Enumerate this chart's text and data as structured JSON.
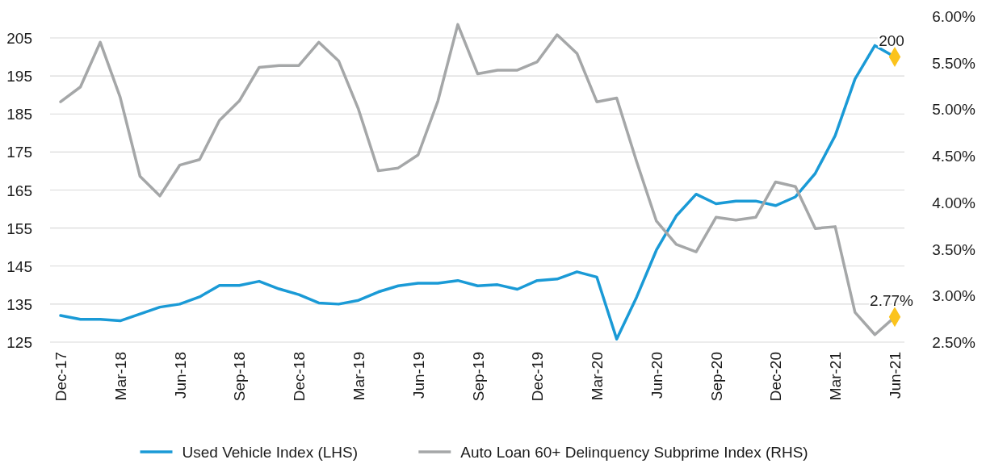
{
  "chart_data": {
    "type": "line",
    "categories": [
      "Dec-17",
      null,
      null,
      "Mar-18",
      null,
      null,
      "Jun-18",
      null,
      null,
      "Sep-18",
      null,
      null,
      "Dec-18",
      null,
      null,
      "Mar-19",
      null,
      null,
      "Jun-19",
      null,
      null,
      "Sep-19",
      null,
      null,
      "Dec-19",
      null,
      null,
      "Mar-20",
      null,
      null,
      "Jun-20",
      null,
      null,
      "Sep-20",
      null,
      null,
      "Dec-20",
      null,
      null,
      "Mar-21",
      null,
      null,
      "Jun-21"
    ],
    "series": [
      {
        "name": "Used Vehicle Index (LHS)",
        "color": "#1a9ad6",
        "values": [
          132,
          131,
          131,
          130.6,
          132.4,
          134.2,
          135,
          136.9,
          139.9,
          139.9,
          141,
          139,
          137.5,
          135.3,
          135,
          136,
          138.2,
          139.8,
          140.5,
          140.5,
          141.2,
          139.8,
          140.1,
          138.9,
          141.2,
          141.6,
          143.5,
          142.1,
          125.8,
          136.8,
          149.2,
          158.2,
          163.9,
          161.4,
          162.1,
          162.1,
          160.9,
          163.2,
          169.4,
          179.3,
          194.2,
          203,
          200
        ]
      },
      {
        "name": "Auto Loan 60+ Delinquency Subprime Index (RHS)",
        "color": "#a5a7a8",
        "axis": "y2",
        "values": [
          5.08,
          5.24,
          5.72,
          5.13,
          4.28,
          4.07,
          4.4,
          4.46,
          4.88,
          5.09,
          5.45,
          5.47,
          5.47,
          5.72,
          5.52,
          5,
          4.34,
          4.37,
          4.51,
          5.09,
          5.91,
          5.38,
          5.42,
          5.42,
          5.51,
          5.8,
          5.6,
          5.08,
          5.12,
          4.44,
          3.8,
          3.55,
          3.47,
          3.84,
          3.81,
          3.84,
          4.22,
          4.17,
          3.72,
          3.74,
          2.82,
          2.58,
          2.77
        ]
      },
      {
        "type": "scatter",
        "marker": "diamond",
        "color": "#fbc31c",
        "x": [
          "Jun-21"
        ],
        "values": [
          200
        ],
        "value_labels": [
          "200"
        ]
      },
      {
        "type": "scatter",
        "marker": "diamond",
        "color": "#fbc31c",
        "axis": "y2",
        "x": [
          "Jun-21"
        ],
        "values": [
          2.77
        ],
        "value_labels": [
          "2.77%"
        ]
      }
    ],
    "ylim": [
      125,
      205
    ],
    "yticks": [
      125,
      135,
      145,
      155,
      165,
      175,
      185,
      195,
      205
    ],
    "y2lim": [
      2.5,
      6
    ],
    "y2ticks": [
      {
        "value": 2.5,
        "label": "2.50%"
      },
      {
        "value": 3,
        "label": "3.00%"
      },
      {
        "value": 3.5,
        "label": "3.50%"
      },
      {
        "value": 4,
        "label": "4.00%"
      },
      {
        "value": 4.5,
        "label": "4.50%"
      },
      {
        "value": 5,
        "label": "5.00%"
      },
      {
        "value": 5.5,
        "label": "5.50%"
      },
      {
        "value": 6,
        "label": "6.00%"
      }
    ],
    "grid": "y",
    "legend": "bottom",
    "marker": "none",
    "line_style": "solid"
  }
}
